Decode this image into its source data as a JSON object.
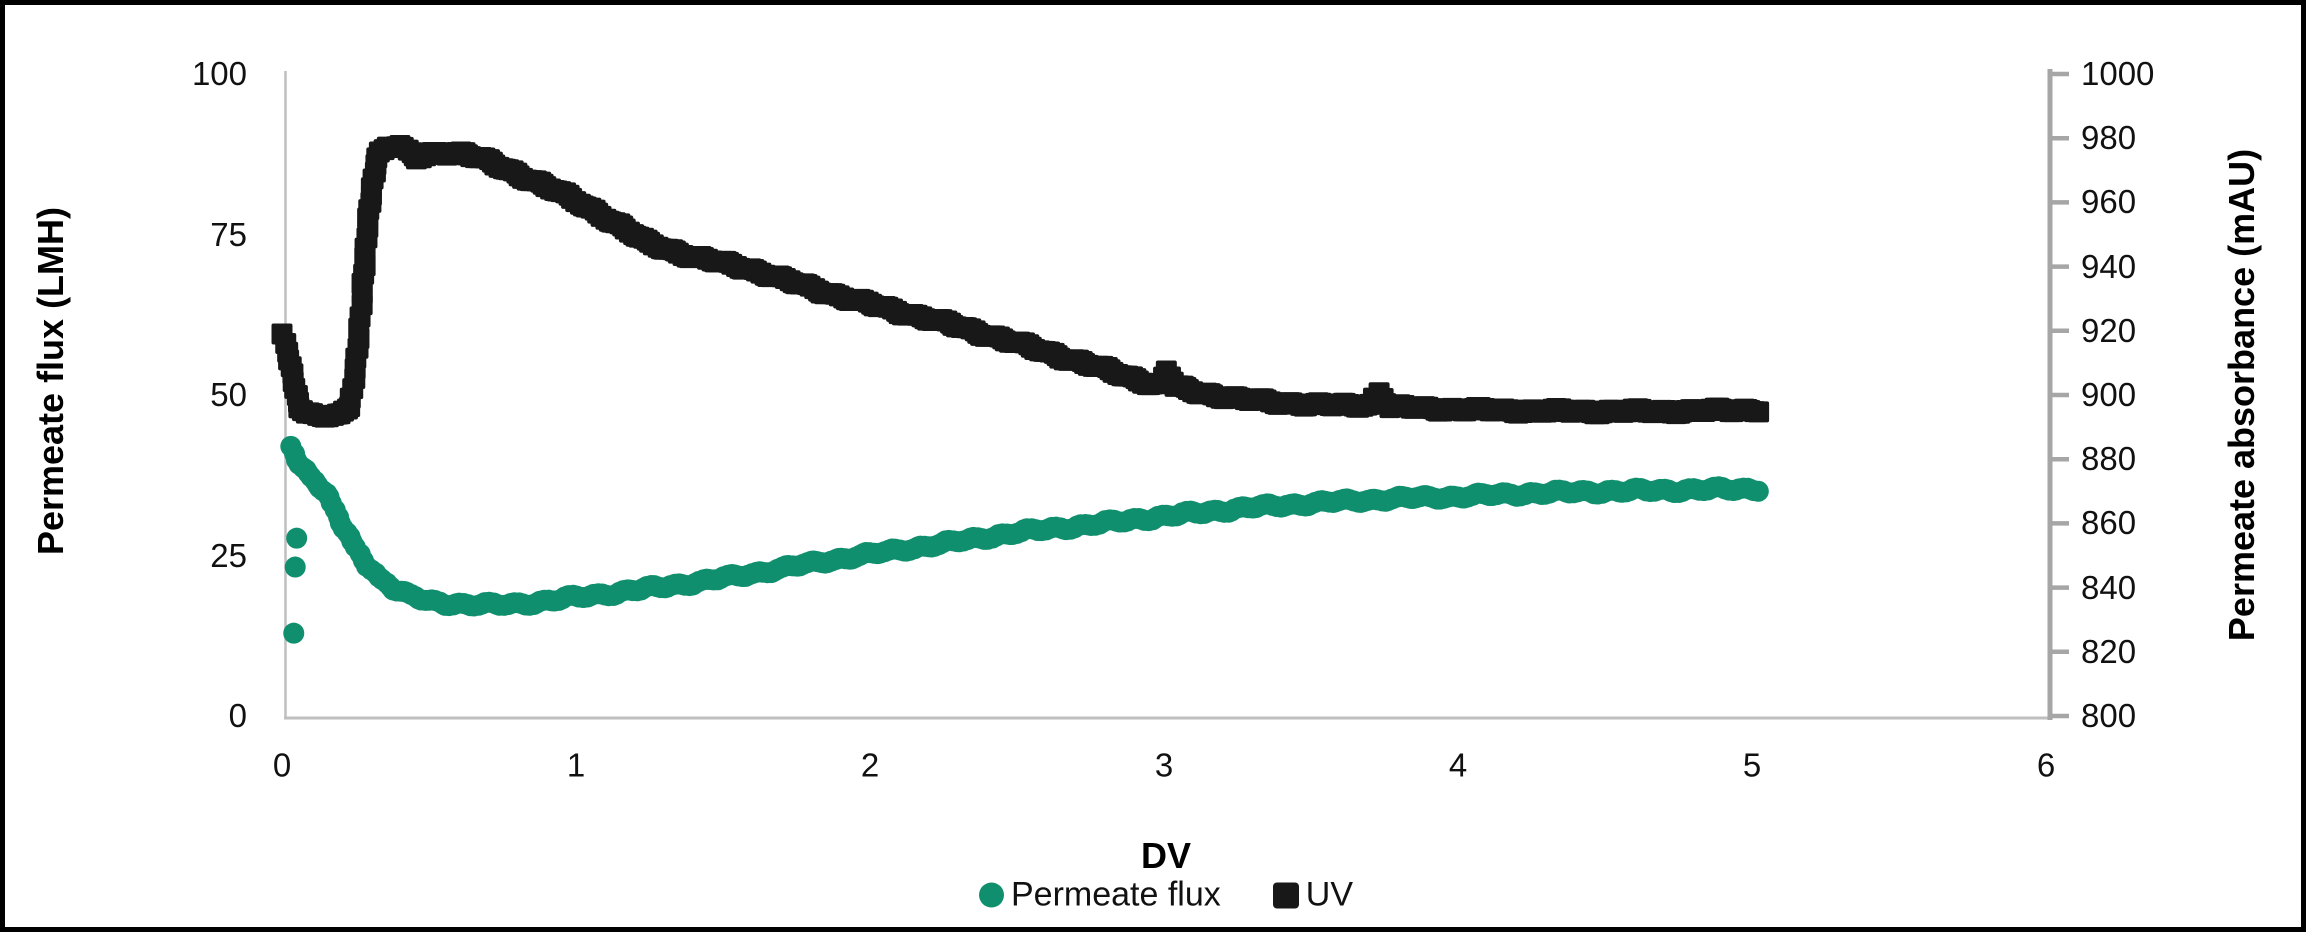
{
  "chart_data": {
    "type": "scatter",
    "title": "",
    "xlabel": "DV",
    "ylabel_left": "Permeate flux (LMH)",
    "ylabel_right": "Permeate absorbance (mAU)",
    "grid": false,
    "legend_position": "bottom-center",
    "x_axis": {
      "min": 0,
      "max": 6,
      "ticks": [
        0,
        1,
        2,
        3,
        4,
        5,
        6
      ]
    },
    "y_axis_left": {
      "min": 0,
      "max": 100,
      "ticks": [
        0,
        25,
        50,
        75,
        100
      ]
    },
    "y_axis_right": {
      "min": 800,
      "max": 1000,
      "ticks": [
        800,
        820,
        840,
        860,
        880,
        900,
        920,
        940,
        960,
        980,
        1000
      ]
    },
    "series": [
      {
        "name": "Permeate flux",
        "axis": "left",
        "marker": "circle",
        "color": "#108F6E",
        "points": [
          [
            0.03,
            42
          ],
          [
            0.05,
            40.2
          ],
          [
            0.07,
            38.8
          ],
          [
            0.1,
            37.3
          ],
          [
            0.13,
            35.8
          ],
          [
            0.16,
            33.8
          ],
          [
            0.19,
            31
          ],
          [
            0.22,
            28.4
          ],
          [
            0.25,
            26.2
          ],
          [
            0.29,
            23.7
          ],
          [
            0.33,
            21.6
          ],
          [
            0.38,
            19.9
          ],
          [
            0.44,
            18.6
          ],
          [
            0.5,
            17.9
          ],
          [
            0.58,
            17.5
          ],
          [
            0.68,
            17.3
          ],
          [
            0.78,
            17.4
          ],
          [
            0.88,
            17.8
          ],
          [
            1,
            18.5
          ],
          [
            1.15,
            19.3
          ],
          [
            1.3,
            20.2
          ],
          [
            1.42,
            20.9
          ],
          [
            1.6,
            22.2
          ],
          [
            1.75,
            23.4
          ],
          [
            1.87,
            24.3
          ],
          [
            2,
            25.2
          ],
          [
            2.15,
            26.2
          ],
          [
            2.33,
            27.4
          ],
          [
            2.5,
            28.6
          ],
          [
            2.73,
            29.7
          ],
          [
            2.9,
            30.6
          ],
          [
            3.1,
            31.6
          ],
          [
            3.3,
            32.5
          ],
          [
            3.55,
            33.3
          ],
          [
            3.8,
            33.9
          ],
          [
            4,
            34.2
          ],
          [
            4.25,
            34.7
          ],
          [
            4.5,
            35
          ],
          [
            4.75,
            35.2
          ],
          [
            5.02,
            35.4
          ]
        ],
        "outliers": [
          [
            0.05,
            27.7
          ],
          [
            0.045,
            23.2
          ],
          [
            0.04,
            12.9
          ]
        ]
      },
      {
        "name": "UV",
        "axis": "right",
        "marker": "square",
        "color": "#181818",
        "points": [
          [
            0,
            919
          ],
          [
            0.02,
            914
          ],
          [
            0.04,
            904
          ],
          [
            0.06,
            896.5
          ],
          [
            0.08,
            894
          ],
          [
            0.12,
            893.3
          ],
          [
            0.16,
            893.3
          ],
          [
            0.2,
            893.6
          ],
          [
            0.23,
            897
          ],
          [
            0.25,
            908
          ],
          [
            0.27,
            928
          ],
          [
            0.29,
            952
          ],
          [
            0.31,
            968
          ],
          [
            0.33,
            975.5
          ],
          [
            0.36,
            977.6
          ],
          [
            0.4,
            977.4
          ],
          [
            0.43,
            975.5
          ],
          [
            0.46,
            973.8
          ],
          [
            0.5,
            975
          ],
          [
            0.55,
            975.6
          ],
          [
            0.62,
            975.3
          ],
          [
            0.68,
            973.5
          ],
          [
            0.75,
            970.8
          ],
          [
            0.82,
            968.2
          ],
          [
            0.9,
            965
          ],
          [
            1,
            960.5
          ],
          [
            1.1,
            955.5
          ],
          [
            1.24,
            947.5
          ],
          [
            1.4,
            943
          ],
          [
            1.58,
            939.6
          ],
          [
            1.75,
            934.8
          ],
          [
            1.92,
            930.2
          ],
          [
            2.1,
            926
          ],
          [
            2.26,
            922.4
          ],
          [
            2.45,
            917.5
          ],
          [
            2.6,
            913.4
          ],
          [
            2.78,
            908.5
          ],
          [
            2.94,
            904
          ],
          [
            2.99,
            903
          ],
          [
            3.01,
            907.5
          ],
          [
            3.04,
            902.5
          ],
          [
            3.12,
            900.8
          ],
          [
            3.25,
            898.8
          ],
          [
            3.4,
            897.6
          ],
          [
            3.55,
            896.8
          ],
          [
            3.7,
            896.9
          ],
          [
            3.73,
            900.9
          ],
          [
            3.77,
            896.4
          ],
          [
            3.9,
            895.8
          ],
          [
            4.1,
            895.3
          ],
          [
            4.3,
            895
          ],
          [
            4.55,
            894.9
          ],
          [
            4.8,
            895
          ],
          [
            5.02,
            895.5
          ]
        ],
        "outliers": []
      }
    ]
  },
  "colors": {
    "flux_marker": "#108F6E",
    "uv_marker": "#181818",
    "axis_line_light": "#BFBFBF",
    "axis_line_right": "#A6A6A6",
    "text": "#111111",
    "frame_border": "#000000",
    "background": "#FFFFFF"
  },
  "legend": {
    "items": [
      {
        "label": "Permeate flux",
        "swatch": "circle",
        "color": "#108F6E"
      },
      {
        "label": "UV",
        "swatch": "square",
        "color": "#181818"
      }
    ]
  }
}
